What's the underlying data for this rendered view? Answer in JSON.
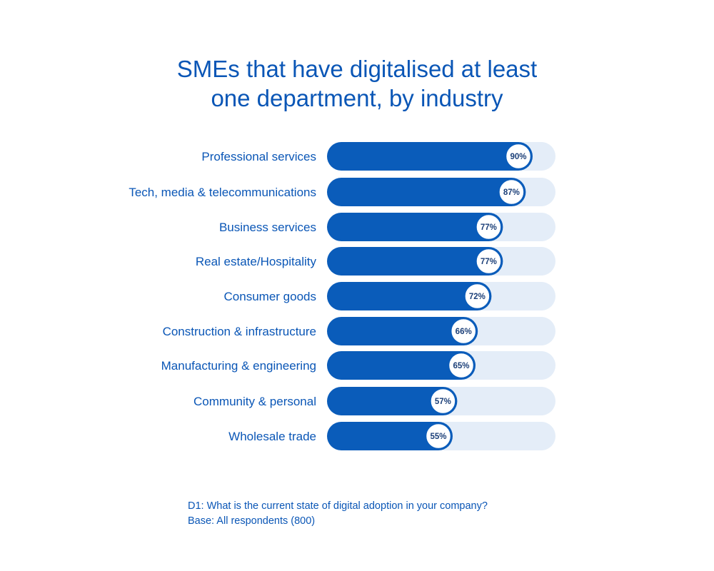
{
  "chart_data": {
    "type": "bar",
    "orientation": "horizontal",
    "title_lines": [
      "SMEs that have digitalised at least",
      "one department, by industry"
    ],
    "categories": [
      "Professional services",
      "Tech, media & telecommunications",
      "Business services",
      "Real estate/Hospitality",
      "Consumer goods",
      "Construction & infrastructure",
      "Manufacturing & engineering",
      "Community & personal",
      "Wholesale trade"
    ],
    "values": [
      90,
      87,
      77,
      77,
      72,
      66,
      65,
      57,
      55
    ],
    "value_labels": [
      "90%",
      "87%",
      "77%",
      "77%",
      "72%",
      "66%",
      "65%",
      "57%",
      "55%"
    ],
    "xlim": [
      0,
      100
    ],
    "grid": false,
    "legend": "none"
  },
  "colors": {
    "bar": "#0a5cba",
    "track": "#e4edf8",
    "text": "#0a56b6",
    "badge_border": "#0a5cba",
    "badge_fill": "#ffffff",
    "badge_text": "#1b3f78"
  },
  "footnote": {
    "question": "D1: What is the current state of digital adoption in your company?",
    "base": "Base: All respondents (800)"
  }
}
